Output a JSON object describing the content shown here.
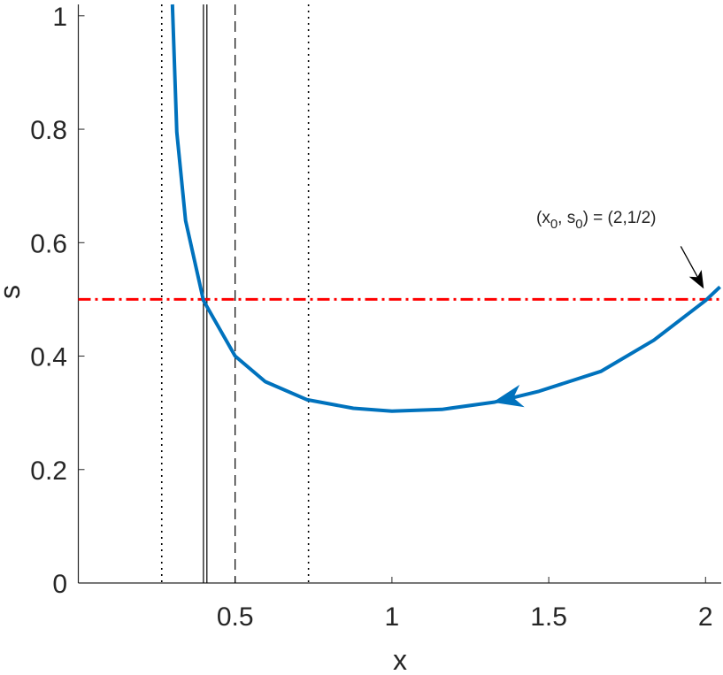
{
  "chart_data": {
    "type": "line",
    "xlabel": "x",
    "ylabel": "s",
    "xlim": [
      0,
      2.05
    ],
    "ylim": [
      0,
      1.02
    ],
    "xticks": [
      0.5,
      1,
      1.5,
      2
    ],
    "yticks": [
      0,
      0.2,
      0.4,
      0.6,
      0.8,
      1
    ],
    "series": [
      {
        "color": "#0072bd",
        "x": [
          0.3,
          0.314,
          0.342,
          0.399,
          0.5,
          0.596,
          0.73,
          0.877,
          1.0,
          1.159,
          1.328,
          1.469,
          1.666,
          1.835,
          2.0,
          2.046
        ],
        "values": [
          1.02,
          0.795,
          0.639,
          0.498,
          0.4,
          0.355,
          0.323,
          0.308,
          0.303,
          0.306,
          0.319,
          0.338,
          0.373,
          0.428,
          0.498,
          0.522
        ]
      }
    ],
    "vlines": [
      {
        "x": 0.266,
        "style": "dotted"
      },
      {
        "x": 0.399,
        "style": "solid"
      },
      {
        "x": 0.41,
        "style": "solid"
      },
      {
        "x": 0.5,
        "style": "dashed"
      },
      {
        "x": 0.734,
        "style": "dotted"
      }
    ],
    "hline": {
      "y": 0.5,
      "color": "#ff0000",
      "style": "dashdot"
    },
    "annotation": {
      "parts": [
        "(x",
        "0",
        ", s",
        "0",
        ") = (2,1/2)"
      ],
      "x": 2,
      "y": 0.5
    }
  }
}
